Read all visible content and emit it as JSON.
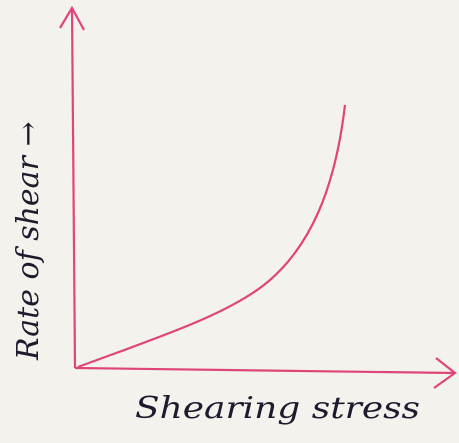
{
  "diagram": {
    "y_axis_label": "Rate of shear →",
    "x_axis_label": "Shearing stress"
  }
}
